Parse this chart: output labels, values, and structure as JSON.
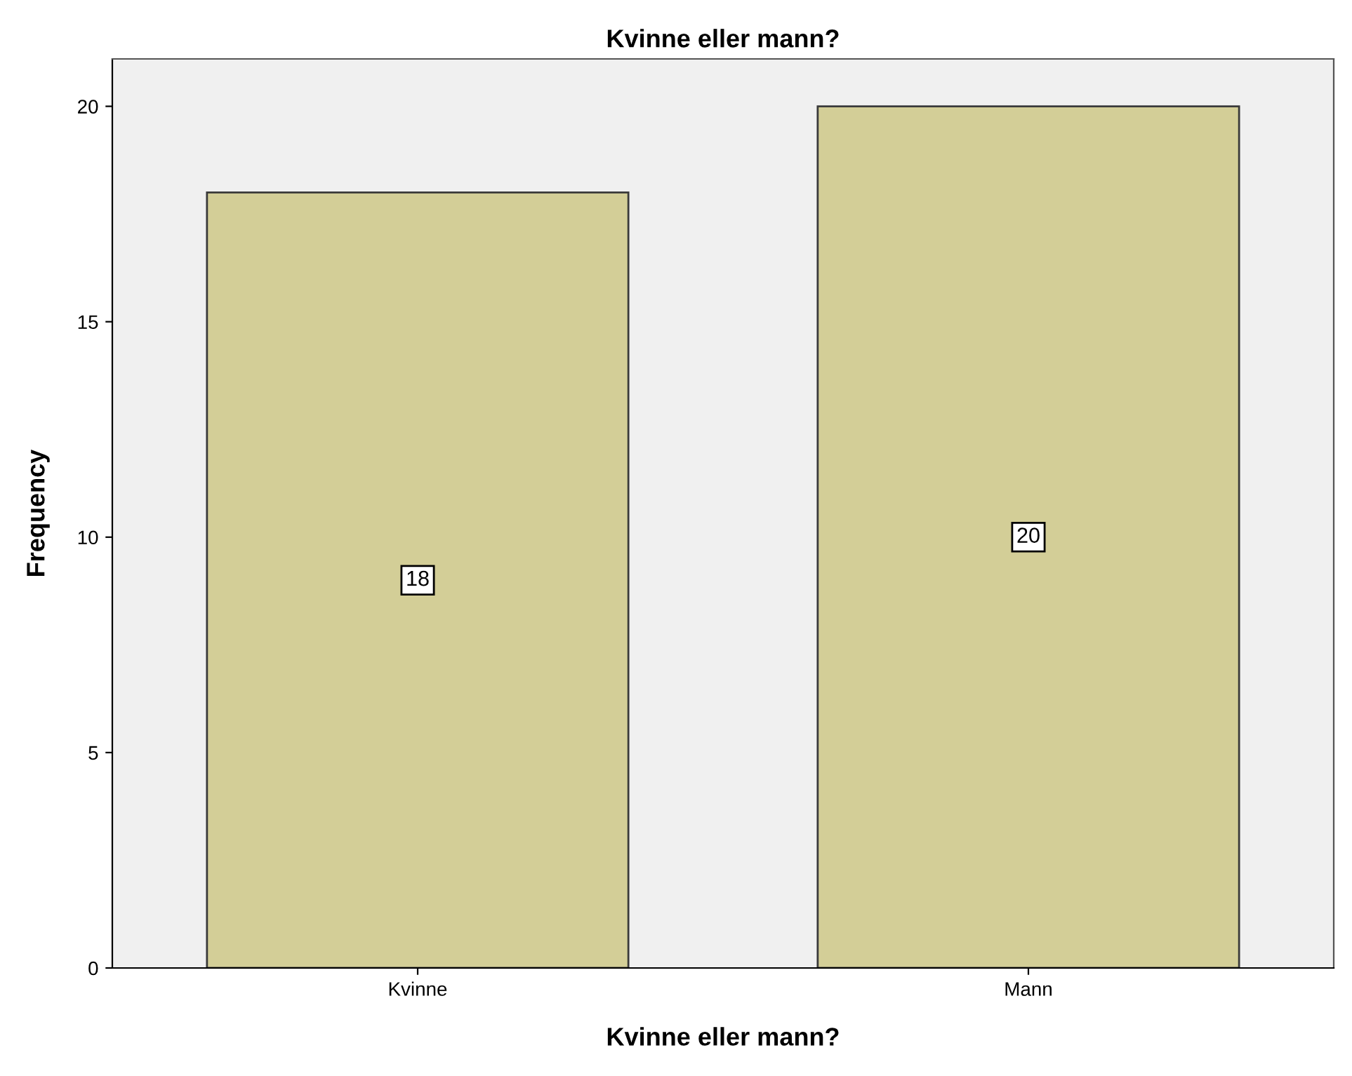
{
  "chart_data": {
    "type": "bar",
    "title": "Kvinne eller mann?",
    "xlabel": "Kvinne eller mann?",
    "ylabel": "Frequency",
    "categories": [
      "Kvinne",
      "Mann"
    ],
    "values": [
      18,
      20
    ],
    "color": "#d3ce97",
    "ylim": [
      0,
      21.1
    ],
    "yticks": [
      0,
      5,
      10,
      15,
      20
    ],
    "grid": false,
    "data_labels": true
  }
}
